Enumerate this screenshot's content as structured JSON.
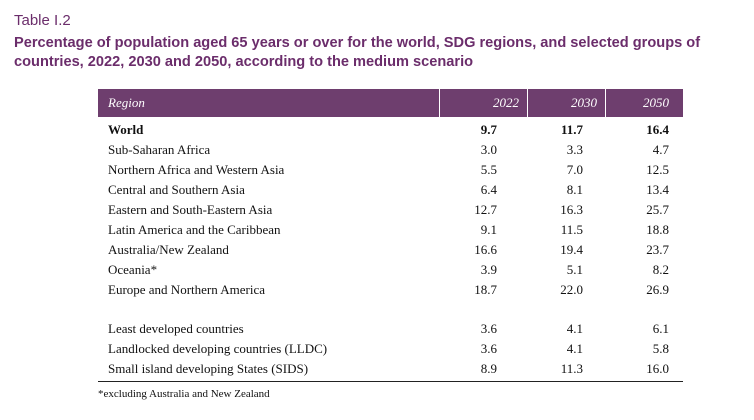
{
  "table_label": "Table I.2",
  "title": "Percentage of population aged 65 years or over for the world, SDG regions, and selected groups of countries, 2022, 2030 and 2050, according to the medium scenario",
  "columns": [
    "Region",
    "2022",
    "2030",
    "2050"
  ],
  "rows_main": [
    {
      "region": "World",
      "v2022": "9.7",
      "v2030": "11.7",
      "v2050": "16.4"
    },
    {
      "region": "Sub-Saharan Africa",
      "v2022": "3.0",
      "v2030": "3.3",
      "v2050": "4.7"
    },
    {
      "region": "Northern Africa and Western Asia",
      "v2022": "5.5",
      "v2030": "7.0",
      "v2050": "12.5"
    },
    {
      "region": "Central and Southern Asia",
      "v2022": "6.4",
      "v2030": "8.1",
      "v2050": "13.4"
    },
    {
      "region": "Eastern and South-Eastern Asia",
      "v2022": "12.7",
      "v2030": "16.3",
      "v2050": "25.7"
    },
    {
      "region": "Latin America and the Caribbean",
      "v2022": "9.1",
      "v2030": "11.5",
      "v2050": "18.8"
    },
    {
      "region": "Australia/New Zealand",
      "v2022": "16.6",
      "v2030": "19.4",
      "v2050": "23.7"
    },
    {
      "region": "Oceania*",
      "v2022": "3.9",
      "v2030": "5.1",
      "v2050": "8.2"
    },
    {
      "region": "Europe and Northern America",
      "v2022": "18.7",
      "v2030": "22.0",
      "v2050": "26.9"
    }
  ],
  "rows_groups": [
    {
      "region": "Least developed countries",
      "v2022": "3.6",
      "v2030": "4.1",
      "v2050": "6.1"
    },
    {
      "region": "Landlocked developing countries (LLDC)",
      "v2022": "3.6",
      "v2030": "4.1",
      "v2050": "5.8"
    },
    {
      "region": "Small island developing States (SIDS)",
      "v2022": "8.9",
      "v2030": "11.3",
      "v2050": "16.0"
    }
  ],
  "footnote": "*excluding Australia and New Zealand"
}
